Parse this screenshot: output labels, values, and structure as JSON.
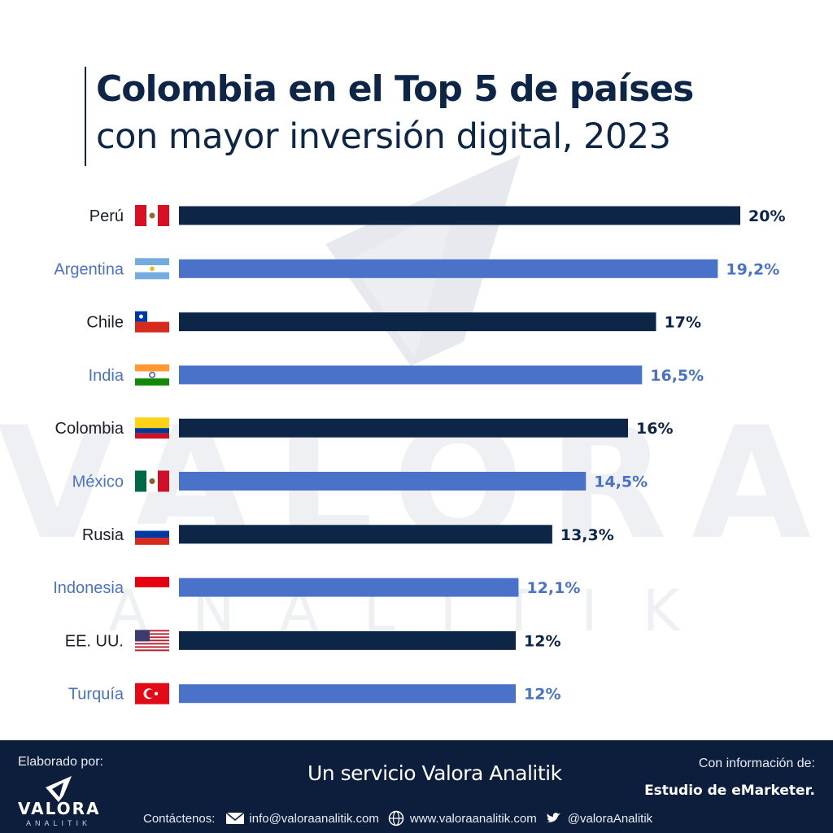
{
  "title": {
    "line1": "Colombia en el Top 5 de países",
    "line2": "con mayor inversión digital, 2023"
  },
  "watermark": {
    "brand": "VALORA",
    "sub": "ANALITIK"
  },
  "chart_data": {
    "type": "bar",
    "orientation": "horizontal",
    "title": "Colombia en el Top 5 de países con mayor inversión digital, 2023",
    "categories": [
      "Perú",
      "Argentina",
      "Chile",
      "India",
      "Colombia",
      "México",
      "Rusia",
      "Indonesia",
      "EE. UU.",
      "Turquía"
    ],
    "values": [
      20,
      19.2,
      17,
      16.5,
      16,
      14.5,
      13.3,
      12.1,
      12,
      12
    ],
    "value_labels": [
      "20%",
      "19,2%",
      "17%",
      "16,5%",
      "16%",
      "14,5%",
      "13,3%",
      "12,1%",
      "12%",
      "12%"
    ],
    "xlim": [
      0,
      20
    ],
    "colors": {
      "dark": "#0d2547",
      "light": "#4a72c8"
    },
    "grid": false,
    "legend": "none"
  },
  "footer": {
    "made_by": "Elaborado por:",
    "logo_name": "VALORA",
    "logo_sub": "ANALITIK",
    "service": "Un servicio Valora Analitik",
    "info_label": "Con información de:",
    "info_source": "Estudio de eMarketer.",
    "contact_label": "Contáctenos:",
    "email": "info@valoraanalitik.com",
    "web": "www.valoraanalitik.com",
    "twitter": "@valoraAnalitik"
  },
  "icons": {
    "email": "envelope-icon",
    "web": "globe-icon",
    "twitter": "twitter-bird-icon"
  }
}
